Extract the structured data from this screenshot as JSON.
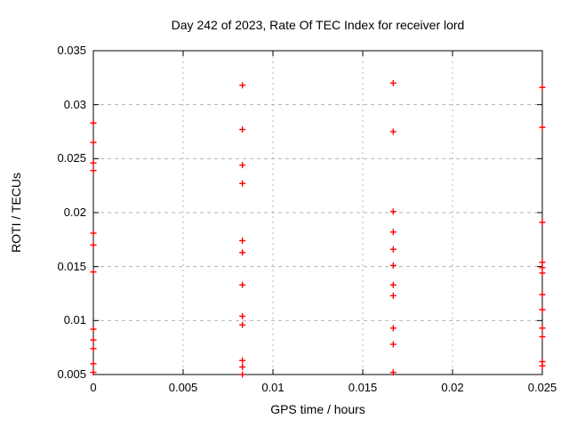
{
  "chart_data": {
    "type": "scatter",
    "title": "Day 242 of 2023, Rate Of TEC Index for receiver lord",
    "xlabel": "GPS time / hours",
    "ylabel": "ROTI / TECUs",
    "xlim": [
      0,
      0.025
    ],
    "ylim": [
      0.005,
      0.035
    ],
    "xticks": [
      0,
      0.005,
      0.01,
      0.015,
      0.02,
      0.025
    ],
    "xtick_labels": [
      "0",
      "0.005",
      "0.01",
      "0.015",
      "0.02",
      "0.025"
    ],
    "yticks": [
      0.005,
      0.01,
      0.015,
      0.02,
      0.025,
      0.03,
      0.035
    ],
    "ytick_labels": [
      "0.005",
      "0.01",
      "0.015",
      "0.02",
      "0.025",
      "0.03",
      "0.035"
    ],
    "grid": true,
    "legend": "none",
    "marker": "plus",
    "marker_color": "#ff0000",
    "grid_color": "#b4b4b4",
    "axis_color": "#000000",
    "series": [
      {
        "name": "ROTI",
        "points": [
          [
            0,
            0.0283
          ],
          [
            0,
            0.0265
          ],
          [
            0,
            0.0246
          ],
          [
            0,
            0.0239
          ],
          [
            0,
            0.0181
          ],
          [
            0,
            0.017
          ],
          [
            0,
            0.0145
          ],
          [
            0,
            0.0092
          ],
          [
            0,
            0.0082
          ],
          [
            0,
            0.0074
          ],
          [
            0,
            0.006
          ],
          [
            0,
            0.0052
          ],
          [
            0.0083,
            0.0318
          ],
          [
            0.0083,
            0.0277
          ],
          [
            0.0083,
            0.0244
          ],
          [
            0.0083,
            0.0227
          ],
          [
            0.0083,
            0.0174
          ],
          [
            0.0083,
            0.0163
          ],
          [
            0.0083,
            0.0133
          ],
          [
            0.0083,
            0.0104
          ],
          [
            0.0083,
            0.0096
          ],
          [
            0.0083,
            0.0063
          ],
          [
            0.0083,
            0.0057
          ],
          [
            0.0083,
            0.005
          ],
          [
            0.0167,
            0.032
          ],
          [
            0.0167,
            0.0275
          ],
          [
            0.0167,
            0.0201
          ],
          [
            0.0167,
            0.0182
          ],
          [
            0.0167,
            0.0166
          ],
          [
            0.0167,
            0.0151
          ],
          [
            0.0167,
            0.0133
          ],
          [
            0.0167,
            0.0123
          ],
          [
            0.0167,
            0.0093
          ],
          [
            0.0167,
            0.0078
          ],
          [
            0.0167,
            0.0052
          ],
          [
            0.025,
            0.0316
          ],
          [
            0.025,
            0.0279
          ],
          [
            0.025,
            0.0191
          ],
          [
            0.025,
            0.0154
          ],
          [
            0.025,
            0.0149
          ],
          [
            0.025,
            0.0144
          ],
          [
            0.025,
            0.0124
          ],
          [
            0.025,
            0.011
          ],
          [
            0.025,
            0.0093
          ],
          [
            0.025,
            0.0085
          ],
          [
            0.025,
            0.0062
          ],
          [
            0.025,
            0.0058
          ]
        ]
      }
    ]
  }
}
